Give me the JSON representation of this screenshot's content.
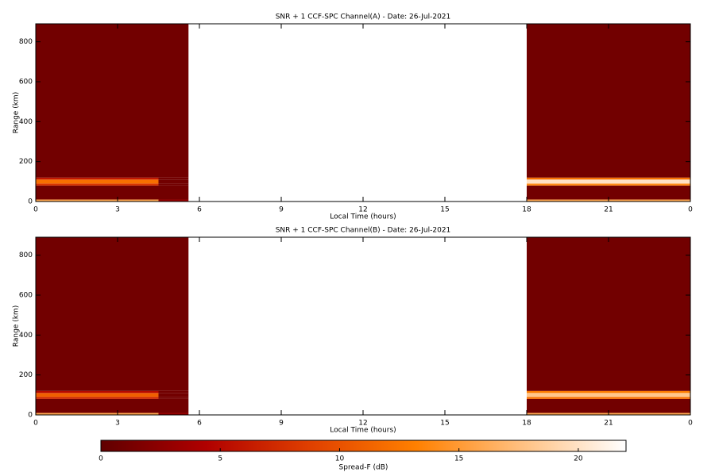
{
  "chart_data": [
    {
      "type": "heatmap",
      "title": "SNR + 1 CCF-SPC Channel(A) - Date: 26-Jul-2021",
      "x_label": "Local Time (hours)",
      "y_label": "Range (km)",
      "x": [
        0,
        4.5,
        5.6,
        18,
        24
      ],
      "y": [
        0,
        10,
        80,
        90,
        110,
        120,
        890
      ],
      "z": [
        [
          16,
          3,
          null,
          16
        ],
        [
          1,
          1,
          null,
          1
        ],
        [
          8,
          1,
          null,
          14
        ],
        [
          12,
          1,
          null,
          20
        ],
        [
          6,
          1,
          null,
          12
        ],
        [
          1,
          1,
          null,
          1
        ]
      ],
      "xlim": [
        0,
        24
      ],
      "xticks": [
        0,
        3,
        6,
        9,
        12,
        15,
        18,
        21,
        {
          "value": 24,
          "label": "0"
        }
      ],
      "ylim": [
        0,
        890
      ],
      "yticks": [
        0,
        200,
        400,
        600,
        800
      ]
    },
    {
      "type": "heatmap",
      "title": "SNR + 1 CCF-SPC Channel(B) - Date: 26-Jul-2021",
      "x_label": "Local Time (hours)",
      "y_label": "Range (km)",
      "x": [
        0,
        4.5,
        5.6,
        18,
        24
      ],
      "y": [
        0,
        10,
        80,
        90,
        110,
        120,
        890
      ],
      "z": [
        [
          16,
          3,
          null,
          16
        ],
        [
          1,
          1,
          null,
          1
        ],
        [
          7,
          1,
          null,
          12
        ],
        [
          11,
          1,
          null,
          18
        ],
        [
          5,
          1,
          null,
          13
        ],
        [
          1,
          1,
          null,
          1
        ]
      ],
      "xlim": [
        0,
        24
      ],
      "xticks": [
        0,
        3,
        6,
        9,
        12,
        15,
        18,
        21,
        {
          "value": 24,
          "label": "0"
        }
      ],
      "ylim": [
        0,
        890
      ],
      "yticks": [
        0,
        200,
        400,
        600,
        800
      ]
    },
    {
      "type": "colorbar",
      "label": "Spread-F (dB)",
      "zlim": [
        0,
        22
      ],
      "ticks": [
        0,
        5,
        10,
        15,
        20
      ],
      "colorscale": [
        "#600000",
        "#b00000",
        "#e04000",
        "#ff8000",
        "#ffc080",
        "#ffffff"
      ]
    }
  ]
}
